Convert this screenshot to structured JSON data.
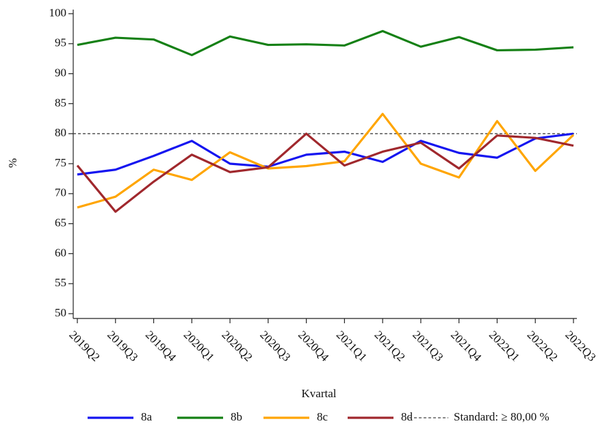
{
  "chart_data": {
    "type": "line",
    "x_label": "Kvartal",
    "y_label": "%",
    "categories": [
      "2019Q2",
      "2019Q3",
      "2019Q4",
      "2020Q1",
      "2020Q2",
      "2020Q3",
      "2020Q4",
      "2021Q1",
      "2021Q2",
      "2021Q3",
      "2021Q4",
      "2022Q1",
      "2022Q2",
      "2022Q3"
    ],
    "series": [
      {
        "name": "8a",
        "color": "#1515f0",
        "values": [
          73.2,
          74.0,
          76.3,
          78.8,
          75.0,
          74.5,
          76.5,
          77.0,
          75.3,
          78.8,
          76.8,
          76.0,
          79.2,
          80.0
        ]
      },
      {
        "name": "8b",
        "color": "#158015",
        "values": [
          94.8,
          96.0,
          95.7,
          93.1,
          96.2,
          94.8,
          94.9,
          94.7,
          97.1,
          94.5,
          96.1,
          93.9,
          94.0,
          94.4
        ]
      },
      {
        "name": "8c",
        "color": "#ffa500",
        "values": [
          67.7,
          69.5,
          74.0,
          72.3,
          76.9,
          74.2,
          74.6,
          75.4,
          83.3,
          75.0,
          72.7,
          82.1,
          73.8,
          79.8
        ]
      },
      {
        "name": "8d",
        "color": "#a0282d",
        "values": [
          74.7,
          67.0,
          72.0,
          76.5,
          73.6,
          74.4,
          80.0,
          74.7,
          77.0,
          78.5,
          74.2,
          79.7,
          79.3,
          78.0
        ]
      }
    ],
    "reference": {
      "value": 80,
      "label": "Standard: ≥ 80,00 %",
      "color": "#444444"
    },
    "ylim": [
      50,
      100
    ],
    "yticks": [
      50,
      55,
      60,
      65,
      70,
      75,
      80,
      85,
      90,
      95,
      100
    ],
    "grid": false,
    "legend": "bottom"
  }
}
